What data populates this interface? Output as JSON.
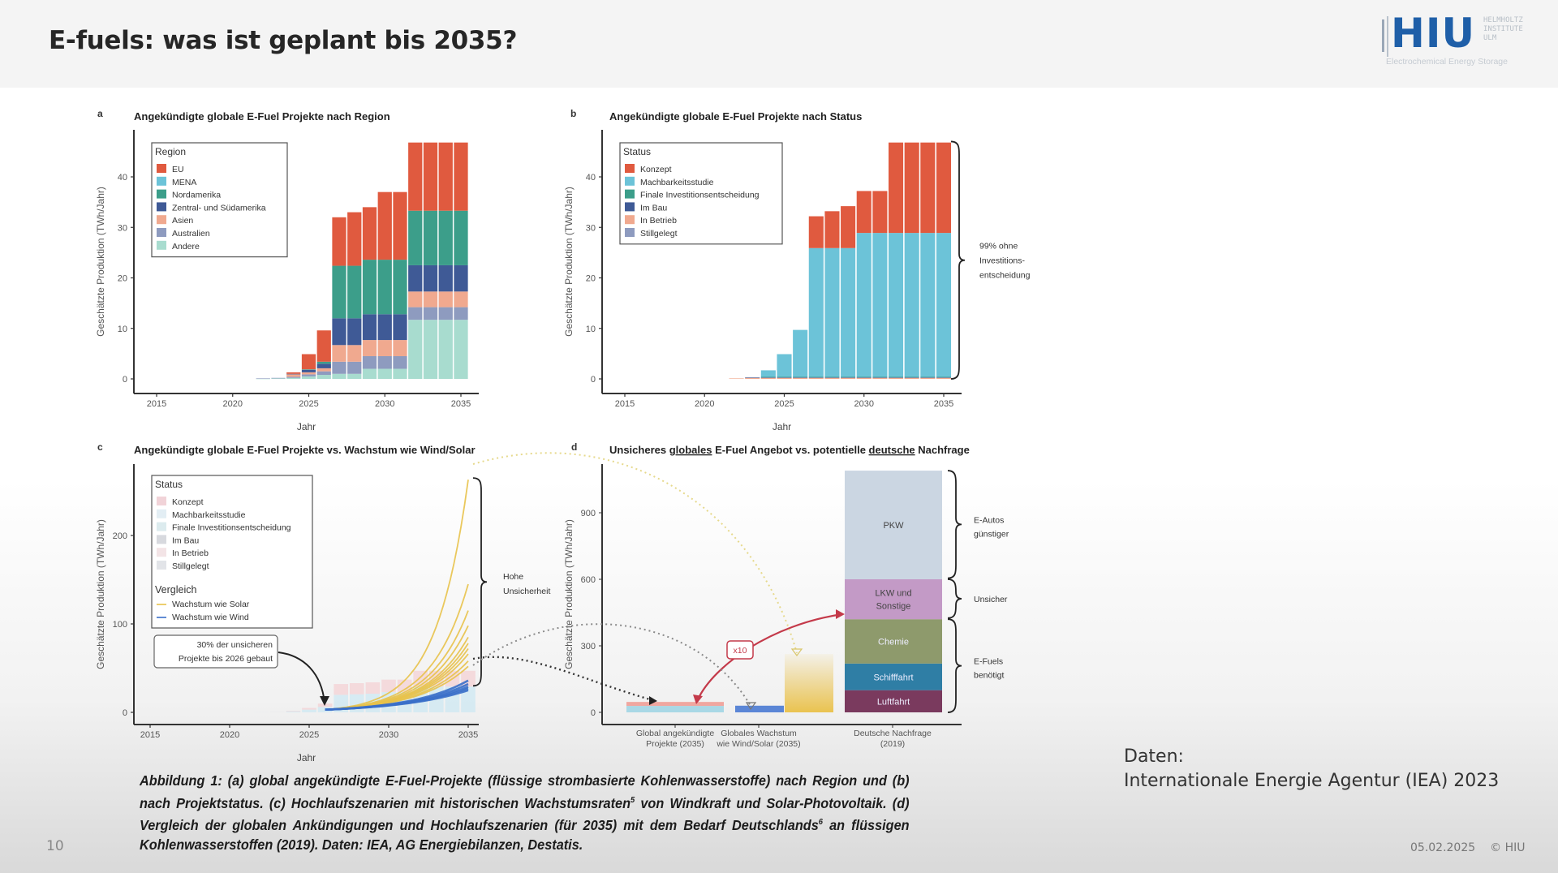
{
  "slide": {
    "title": "E-fuels: was ist geplant bis 2035?",
    "page_number": "10",
    "date": "05.02.2025",
    "copyright": "© HIU"
  },
  "logo": {
    "name": "HIU",
    "subtitle_lines": [
      "HELMHOLTZ",
      "INSTITUTE",
      "ULM"
    ],
    "tagline": "Electrochemical Energy Storage"
  },
  "data_source": {
    "label": "Daten:",
    "text": "Internationale Energie Agentur (IEA) 2023"
  },
  "caption": {
    "line1": "Abbildung 1: (a) global angekündigte E-Fuel-Projekte (flüssige strombasierte Kohlenwasserstoffe) nach Region und (b) nach Projektstatus. (c) Hochlaufszenarien mit historischen Wachstumsraten",
    "sup1": "5",
    "line2": " von Windkraft und Solar-Photovoltaik. (d) Vergleich der globalen Ankündigungen und Hochlaufszenarien (für 2035) mit dem Bedarf Deutschlands",
    "sup2": "6",
    "line3": " an flüssigen Kohlenwasserstoffen (2019). Daten: IEA, AG Energiebilanzen, Destatis."
  },
  "chart_data": [
    {
      "panel": "a",
      "type": "bar",
      "stacked": true,
      "title": "Angekündigte globale E-Fuel Projekte nach Region",
      "xlabel": "Jahr",
      "ylabel": "Geschätzte Produktion (TWh/Jahr)",
      "xlim": [
        2014,
        2036
      ],
      "ylim": [
        -2,
        47
      ],
      "xticks": [
        2015,
        2020,
        2025,
        2030,
        2035
      ],
      "yticks": [
        0,
        10,
        20,
        30,
        40
      ],
      "legend": {
        "title": "Region",
        "position": "top-left"
      },
      "categories": [
        2022,
        2023,
        2024,
        2025,
        2026,
        2027,
        2028,
        2029,
        2030,
        2031,
        2032,
        2033,
        2034,
        2035
      ],
      "series": [
        {
          "name": "Andere",
          "color": "#a8dccf",
          "values": [
            0.05,
            0.1,
            0.2,
            0.5,
            0.8,
            1.0,
            1.0,
            2.0,
            2.0,
            2.0,
            11.7,
            11.7,
            11.7,
            11.7
          ]
        },
        {
          "name": "Australien",
          "color": "#8e9bbf",
          "values": [
            0.05,
            0.1,
            0.2,
            0.4,
            0.7,
            2.4,
            2.4,
            2.5,
            2.5,
            2.5,
            2.5,
            2.5,
            2.5,
            2.5
          ]
        },
        {
          "name": "Asien",
          "color": "#f0a98f",
          "values": [
            0.0,
            0.0,
            0.5,
            0.4,
            0.6,
            3.3,
            3.3,
            3.2,
            3.2,
            3.2,
            3.1,
            3.1,
            3.1,
            3.1
          ]
        },
        {
          "name": "Zentral- und Südamerika",
          "color": "#3f5a96",
          "values": [
            0.0,
            0.0,
            0.1,
            0.5,
            0.9,
            5.3,
            5.3,
            5.1,
            5.1,
            5.1,
            5.2,
            5.2,
            5.2,
            5.2
          ]
        },
        {
          "name": "Nordamerika",
          "color": "#3c9e8a",
          "values": [
            0.0,
            0.0,
            0.0,
            0.1,
            0.4,
            10.4,
            10.4,
            10.8,
            10.8,
            10.8,
            10.8,
            10.8,
            10.8,
            10.8
          ]
        },
        {
          "name": "MENA",
          "color": "#6cc3d8",
          "values": [
            0,
            0,
            0,
            0,
            0,
            0,
            0,
            0,
            0,
            0,
            0,
            0,
            0,
            0
          ]
        },
        {
          "name": "EU",
          "color": "#e05a3f",
          "values": [
            0.0,
            0.0,
            0.3,
            3.0,
            6.2,
            9.6,
            10.6,
            10.4,
            13.4,
            13.4,
            13.5,
            13.5,
            13.5,
            13.5
          ]
        }
      ],
      "legend_order": [
        "EU",
        "MENA",
        "Nordamerika",
        "Zentral- und Südamerika",
        "Asien",
        "Australien",
        "Andere"
      ]
    },
    {
      "panel": "b",
      "type": "bar",
      "stacked": true,
      "title": "Angekündigte globale E-Fuel Projekte nach Status",
      "xlabel": "Jahr",
      "ylabel": "Geschätzte Produktion (TWh/Jahr)",
      "xlim": [
        2014,
        2036
      ],
      "ylim": [
        -2,
        47
      ],
      "xticks": [
        2015,
        2020,
        2025,
        2030,
        2035
      ],
      "yticks": [
        0,
        10,
        20,
        30,
        40
      ],
      "legend": {
        "title": "Status",
        "position": "top-left"
      },
      "categories": [
        2022,
        2023,
        2024,
        2025,
        2026,
        2027,
        2028,
        2029,
        2030,
        2031,
        2032,
        2033,
        2034,
        2035
      ],
      "series": [
        {
          "name": "Stillgelegt",
          "color": "#8e9bbf",
          "values": [
            0,
            0,
            0,
            0,
            0,
            0,
            0,
            0,
            0,
            0,
            0,
            0,
            0,
            0
          ]
        },
        {
          "name": "In Betrieb",
          "color": "#f0a98f",
          "values": [
            0.1,
            0.2,
            0.2,
            0.2,
            0.2,
            0.2,
            0.2,
            0.2,
            0.2,
            0.2,
            0.2,
            0.2,
            0.2,
            0.2
          ]
        },
        {
          "name": "Im Bau",
          "color": "#3f5a96",
          "values": [
            0,
            0.1,
            0.1,
            0.1,
            0.1,
            0.1,
            0.1,
            0.1,
            0.1,
            0.1,
            0.1,
            0.1,
            0.1,
            0.1
          ]
        },
        {
          "name": "Finale Investitionsentscheidung",
          "color": "#3c9e8a",
          "values": [
            0,
            0,
            0.1,
            0.1,
            0.1,
            0.1,
            0.1,
            0.1,
            0.1,
            0.1,
            0.1,
            0.1,
            0.1,
            0.1
          ]
        },
        {
          "name": "Machbarkeitsstudie",
          "color": "#6cc3d8",
          "values": [
            0.0,
            0.0,
            1.3,
            4.5,
            9.3,
            25.5,
            25.5,
            25.5,
            28.5,
            28.5,
            28.5,
            28.5,
            28.5,
            28.5
          ]
        },
        {
          "name": "Konzept",
          "color": "#e05a3f",
          "values": [
            0.0,
            0.0,
            0.0,
            0.0,
            0.0,
            6.3,
            7.3,
            8.3,
            8.3,
            8.3,
            17.9,
            17.9,
            17.9,
            17.9
          ]
        }
      ],
      "legend_order": [
        "Konzept",
        "Machbarkeitsstudie",
        "Finale Investitionsentscheidung",
        "Im Bau",
        "In Betrieb",
        "Stillgelegt"
      ],
      "annotation": "99% ohne Investitions-entscheidung"
    },
    {
      "panel": "c",
      "type": "line",
      "title": "Angekündigte globale E-Fuel Projekte vs. Wachstum wie Wind/Solar",
      "xlabel": "Jahr",
      "ylabel": "Geschätzte Produktion (TWh/Jahr)",
      "xlim": [
        2014,
        2036
      ],
      "ylim": [
        -8,
        275
      ],
      "xticks": [
        2015,
        2020,
        2025,
        2030,
        2035
      ],
      "yticks": [
        0,
        100,
        200
      ],
      "legend": {
        "status_title": "Status",
        "status_items": [
          "Konzept",
          "Machbarkeitsstudie",
          "Finale Investitionsentscheidung",
          "Im Bau",
          "In Betrieb",
          "Stillgelegt"
        ],
        "compare_title": "Vergleich",
        "compare_items": [
          {
            "name": "Wachstum wie Solar",
            "color": "#e8c24a"
          },
          {
            "name": "Wachstum wie Wind",
            "color": "#3a6fc9"
          }
        ],
        "position": "top-left"
      },
      "background_bars": {
        "categories": [
          2022,
          2023,
          2024,
          2025,
          2026,
          2027,
          2028,
          2029,
          2030,
          2031,
          2032,
          2033,
          2034,
          2035
        ],
        "totals": [
          0.1,
          0.3,
          1.7,
          5.0,
          9.9,
          32,
          33,
          34,
          37,
          37,
          47,
          47,
          47,
          47
        ]
      },
      "start_year": 2026,
      "start_value": 3,
      "series": [
        {
          "name": "Wachstum wie Solar",
          "color": "#e8c24a",
          "end_values_2035": [
            263,
            145,
            115,
            98,
            85,
            78,
            72,
            66,
            58,
            52
          ]
        },
        {
          "name": "Wachstum wie Wind",
          "color": "#3a6fc9",
          "end_values_2035": [
            36,
            32,
            29,
            27,
            25
          ]
        }
      ],
      "annotations": [
        "30% der unsicheren Projekte bis 2026 gebaut",
        "Hohe Unsicherheit"
      ]
    },
    {
      "panel": "d",
      "type": "bar",
      "stacked": true,
      "title": "Unsicheres globales E-Fuel Angebot vs. potentielle deutsche Nachfrage",
      "title_parts": [
        "Unsicheres ",
        "globales",
        " E-Fuel Angebot vs. potentielle ",
        "deutsche",
        " Nachfrage"
      ],
      "ylabel": "Geschätzte Produktion (TWh/Jahr)",
      "ylim": [
        -30,
        1050
      ],
      "yticks": [
        0,
        300,
        600,
        900
      ],
      "categories": [
        "Global angekündigte Projekte (2035)",
        "Globales Wachstum wie Wind/Solar (2035)",
        "Deutsche Nachfrage (2019)"
      ],
      "category_lines": [
        [
          "Global angekündigte",
          "Projekte (2035)"
        ],
        [
          "Globales Wachstum",
          "wie Wind/Solar (2035)"
        ],
        [
          "Deutsche Nachfrage",
          "(2019)"
        ]
      ],
      "global_projects": [
        {
          "name": "Machbarkeitsstudie",
          "color": "#a9d8e6",
          "value": 29
        },
        {
          "name": "Konzept",
          "color": "#f0a7a0",
          "value": 18
        }
      ],
      "global_growth": [
        {
          "name": "Wachstum wie Wind",
          "color": "#5b86d6",
          "value": 30
        },
        {
          "name": "Wachstum wie Solar",
          "color": "#eac350",
          "value": 263
        }
      ],
      "german_demand": [
        {
          "name": "Luftfahrt",
          "color": "#7a3a5e",
          "value": 100
        },
        {
          "name": "Schifffahrt",
          "color": "#2f7ea5",
          "value": 120
        },
        {
          "name": "Chemie",
          "color": "#8e9a6c",
          "value": 200
        },
        {
          "name": "LKW und Sonstige",
          "color": "#c39ac6",
          "value": 180
        },
        {
          "name": "PKW",
          "color": "#cbd6e2",
          "value": 490
        }
      ],
      "brackets": [
        {
          "label": "E-Autos günstiger",
          "lines": [
            "E-Autos",
            "günstiger"
          ]
        },
        {
          "label": "Unsicher",
          "lines": [
            "Unsicher"
          ]
        },
        {
          "label": "E-Fuels benötigt",
          "lines": [
            "E-Fuels",
            "benötigt"
          ]
        }
      ],
      "factor_label": "x10"
    }
  ]
}
